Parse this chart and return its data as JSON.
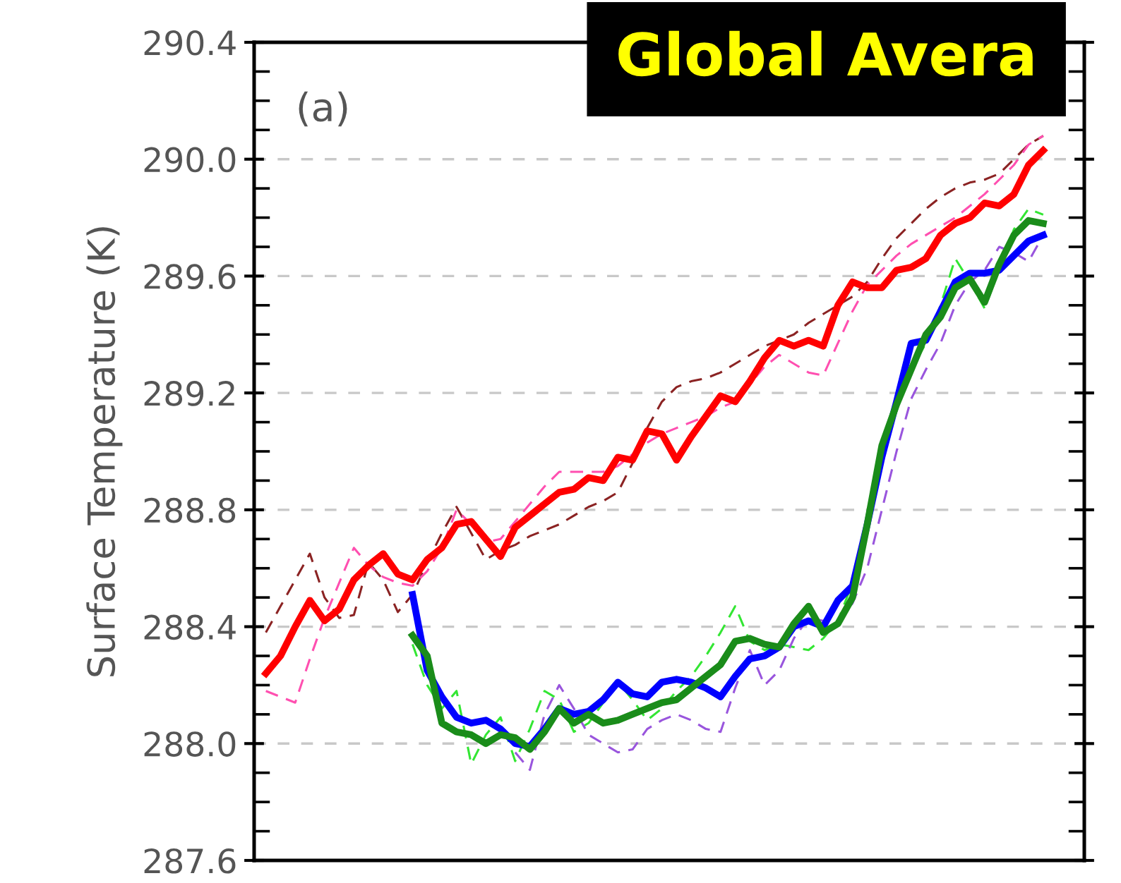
{
  "chart_data": {
    "type": "line",
    "title": "Global Avera",
    "ylabel": "Surface Temperature (K)",
    "annotations": [
      "(a)"
    ],
    "categories": [
      null,
      null,
      null,
      null,
      null,
      null,
      null,
      null,
      null,
      null,
      null,
      null,
      null,
      null,
      null,
      null,
      null,
      null,
      null,
      null,
      null,
      null,
      null,
      null,
      null,
      null,
      null,
      null,
      null,
      null,
      null,
      null,
      null,
      null,
      null,
      null,
      null,
      null,
      null,
      null,
      null,
      null,
      null,
      null,
      null,
      null,
      null,
      null,
      null,
      null,
      null,
      null,
      null,
      null
    ],
    "ylim": [
      287.6,
      290.4
    ],
    "yticks": [
      {
        "value": 287.6,
        "label": "287.6"
      },
      {
        "value": 287.7,
        "label": null
      },
      {
        "value": 287.8,
        "label": null
      },
      {
        "value": 287.9,
        "label": null
      },
      {
        "value": 288.0,
        "label": "288.0"
      },
      {
        "value": 288.1,
        "label": null
      },
      {
        "value": 288.2,
        "label": null
      },
      {
        "value": 288.3,
        "label": null
      },
      {
        "value": 288.4,
        "label": "288.4"
      },
      {
        "value": 288.5,
        "label": null
      },
      {
        "value": 288.6,
        "label": null
      },
      {
        "value": 288.7,
        "label": null
      },
      {
        "value": 288.8,
        "label": "288.8"
      },
      {
        "value": 288.9,
        "label": null
      },
      {
        "value": 289.0,
        "label": null
      },
      {
        "value": 289.1,
        "label": null
      },
      {
        "value": 289.2,
        "label": "289.2"
      },
      {
        "value": 289.3,
        "label": null
      },
      {
        "value": 289.4,
        "label": null
      },
      {
        "value": 289.5,
        "label": null
      },
      {
        "value": 289.6,
        "label": "289.6"
      },
      {
        "value": 289.7,
        "label": null
      },
      {
        "value": 289.8,
        "label": null
      },
      {
        "value": 289.9,
        "label": null
      },
      {
        "value": 290.0,
        "label": "290.0"
      },
      {
        "value": 290.1,
        "label": null
      },
      {
        "value": 290.2,
        "label": null
      },
      {
        "value": 290.3,
        "label": null
      },
      {
        "value": 290.4,
        "label": "290.4"
      }
    ],
    "grid": "y",
    "tick_labels": "y",
    "series": [
      {
        "color": "#8b2323",
        "line_style": "dashed",
        "values": [
          288.38,
          288.47,
          288.56,
          288.65,
          288.5,
          288.43,
          288.44,
          288.62,
          288.56,
          288.45,
          288.51,
          288.62,
          288.72,
          288.81,
          288.72,
          288.63,
          288.66,
          288.68,
          288.71,
          288.73,
          288.75,
          288.78,
          288.81,
          288.83,
          288.86,
          288.96,
          289.08,
          289.17,
          289.22,
          289.24,
          289.25,
          289.27,
          289.3,
          289.33,
          289.36,
          289.38,
          289.4,
          289.44,
          289.47,
          289.5,
          289.53,
          289.58,
          289.66,
          289.73,
          289.78,
          289.83,
          289.87,
          289.9,
          289.92,
          289.93,
          289.95,
          290.0,
          290.05,
          290.08
        ]
      },
      {
        "color": "#ff4fb0",
        "line_style": "dashed",
        "values": [
          288.18,
          288.16,
          288.14,
          288.29,
          288.43,
          288.55,
          288.67,
          288.61,
          288.57,
          288.55,
          288.54,
          288.59,
          288.67,
          288.8,
          288.75,
          288.69,
          288.7,
          288.76,
          288.82,
          288.88,
          288.93,
          288.93,
          288.93,
          288.93,
          288.95,
          288.99,
          289.03,
          289.06,
          289.08,
          289.1,
          289.12,
          289.15,
          289.17,
          289.23,
          289.29,
          289.33,
          289.3,
          289.27,
          289.26,
          289.37,
          289.48,
          289.57,
          289.62,
          289.67,
          289.71,
          289.74,
          289.77,
          289.8,
          289.84,
          289.88,
          289.93,
          289.98,
          290.05,
          290.08
        ]
      },
      {
        "color": "#33e633",
        "line_style": "dashed",
        "values": [
          null,
          null,
          null,
          null,
          null,
          null,
          null,
          null,
          null,
          null,
          288.34,
          288.2,
          288.12,
          288.18,
          287.93,
          288.03,
          288.09,
          287.94,
          288.05,
          288.18,
          288.15,
          288.04,
          288.07,
          288.14,
          288.21,
          288.15,
          288.08,
          288.12,
          288.18,
          288.23,
          288.3,
          288.38,
          288.47,
          288.35,
          288.32,
          288.34,
          288.33,
          288.32,
          288.36,
          288.42,
          288.55,
          288.77,
          289.0,
          289.15,
          289.28,
          289.37,
          289.5,
          289.66,
          289.58,
          289.49,
          289.62,
          289.76,
          289.83,
          289.81
        ]
      },
      {
        "color": "#9955dd",
        "line_style": "dashed",
        "values": [
          null,
          null,
          null,
          null,
          null,
          null,
          null,
          null,
          null,
          null,
          null,
          null,
          null,
          null,
          null,
          null,
          null,
          287.97,
          287.91,
          288.1,
          288.2,
          288.12,
          288.03,
          288.0,
          287.97,
          287.98,
          288.05,
          288.08,
          288.1,
          288.08,
          288.05,
          288.04,
          288.19,
          288.32,
          288.2,
          288.25,
          288.36,
          288.43,
          288.42,
          288.42,
          288.48,
          288.6,
          288.8,
          289.0,
          289.18,
          289.28,
          289.37,
          289.5,
          289.58,
          289.62,
          289.7,
          289.68,
          289.65,
          289.74
        ]
      },
      {
        "color": "#ff0000",
        "line_style": "solid",
        "values": [
          288.24,
          288.3,
          288.4,
          288.49,
          288.42,
          288.46,
          288.56,
          288.61,
          288.65,
          288.58,
          288.56,
          288.63,
          288.67,
          288.75,
          288.76,
          288.7,
          288.64,
          288.74,
          288.78,
          288.82,
          288.86,
          288.87,
          288.91,
          288.9,
          288.98,
          288.97,
          289.07,
          289.06,
          288.97,
          289.05,
          289.12,
          289.19,
          289.17,
          289.24,
          289.32,
          289.38,
          289.36,
          289.38,
          289.36,
          289.5,
          289.58,
          289.56,
          289.56,
          289.62,
          289.63,
          289.66,
          289.74,
          289.78,
          289.8,
          289.85,
          289.84,
          289.88,
          289.98,
          290.03
        ]
      },
      {
        "color": "#0000ff",
        "line_style": "solid",
        "values": [
          null,
          null,
          null,
          null,
          null,
          null,
          null,
          null,
          null,
          null,
          288.51,
          288.25,
          288.16,
          288.09,
          288.07,
          288.08,
          288.05,
          288.0,
          287.99,
          288.05,
          288.12,
          288.1,
          288.11,
          288.15,
          288.21,
          288.17,
          288.16,
          288.21,
          288.22,
          288.21,
          288.19,
          288.16,
          288.23,
          288.29,
          288.3,
          288.33,
          288.4,
          288.42,
          288.4,
          288.49,
          288.54,
          288.75,
          288.98,
          289.17,
          289.37,
          289.38,
          289.48,
          289.58,
          289.61,
          289.61,
          289.62,
          289.67,
          289.72,
          289.74
        ]
      },
      {
        "color": "#1a8c1a",
        "line_style": "solid",
        "values": [
          null,
          null,
          null,
          null,
          null,
          null,
          null,
          null,
          null,
          null,
          288.37,
          288.3,
          288.07,
          288.04,
          288.03,
          288.0,
          288.03,
          288.02,
          287.98,
          288.04,
          288.12,
          288.07,
          288.1,
          288.07,
          288.08,
          288.1,
          288.12,
          288.14,
          288.15,
          288.19,
          288.23,
          288.27,
          288.35,
          288.36,
          288.34,
          288.33,
          288.41,
          288.47,
          288.38,
          288.41,
          288.5,
          288.75,
          289.02,
          289.16,
          289.28,
          289.4,
          289.46,
          289.56,
          289.59,
          289.51,
          289.64,
          289.74,
          289.79,
          289.78
        ]
      }
    ]
  }
}
